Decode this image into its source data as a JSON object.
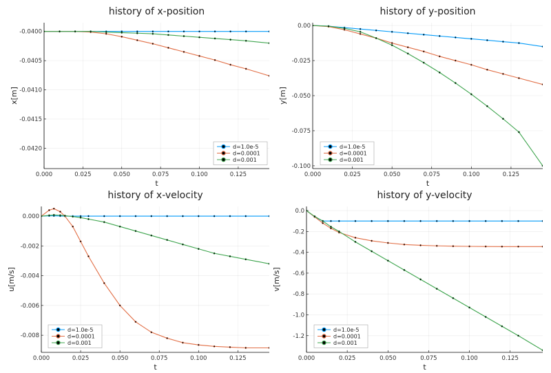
{
  "chart_data": [
    {
      "type": "line",
      "title": "history of x-position",
      "xlabel": "t",
      "ylabel": "x[m]",
      "xlim": [
        0,
        0.145
      ],
      "ylim": [
        -0.04235,
        -0.03985
      ],
      "xticks": [
        0,
        0.025,
        0.05,
        0.075,
        0.1,
        0.125
      ],
      "xtick_labels": [
        "0.000",
        "0.025",
        "0.050",
        "0.075",
        "0.100",
        "0.125"
      ],
      "yticks": [
        -0.04,
        -0.0405,
        -0.041,
        -0.0415,
        -0.042
      ],
      "ytick_labels": [
        "-0.0400",
        "-0.0405",
        "-0.0410",
        "-0.0415",
        "-0.0420"
      ],
      "grid": true,
      "legend_position": "bottom-right",
      "x": [
        0,
        0.01,
        0.02,
        0.03,
        0.04,
        0.05,
        0.06,
        0.07,
        0.08,
        0.09,
        0.1,
        0.11,
        0.12,
        0.13,
        0.145
      ],
      "series": [
        {
          "name": "d=1.0e-5",
          "color": "#009af9",
          "values": [
            -0.04,
            -0.04,
            -0.04,
            -0.04,
            -0.04,
            -0.04,
            -0.04,
            -0.04,
            -0.04,
            -0.04,
            -0.04,
            -0.04,
            -0.04,
            -0.04,
            -0.04
          ]
        },
        {
          "name": "d=0.0001",
          "color": "#e26f46",
          "values": [
            -0.04,
            -0.04,
            -0.04,
            -0.04001,
            -0.04004,
            -0.04009,
            -0.04015,
            -0.04021,
            -0.04028,
            -0.04035,
            -0.04042,
            -0.04049,
            -0.04057,
            -0.04064,
            -0.04076
          ]
        },
        {
          "name": "d=0.001",
          "color": "#3da44d",
          "values": [
            -0.04,
            -0.04,
            -0.04,
            -0.04,
            -0.04001,
            -0.04002,
            -0.04003,
            -0.04004,
            -0.04006,
            -0.04008,
            -0.0401,
            -0.04012,
            -0.04014,
            -0.04016,
            -0.0402
          ]
        }
      ]
    },
    {
      "type": "line",
      "title": "history of y-position",
      "xlabel": "t",
      "ylabel": "y[m]",
      "xlim": [
        0,
        0.145
      ],
      "ylim": [
        -0.102,
        0.002
      ],
      "xticks": [
        0,
        0.025,
        0.05,
        0.075,
        0.1,
        0.125
      ],
      "xtick_labels": [
        "0.000",
        "0.025",
        "0.050",
        "0.075",
        "0.100",
        "0.125"
      ],
      "yticks": [
        0,
        -0.025,
        -0.05,
        -0.075,
        -0.1
      ],
      "ytick_labels": [
        "0.00",
        "-0.025",
        "-0.050",
        "-0.075",
        "-0.100"
      ],
      "grid": true,
      "legend_position": "bottom-left",
      "x": [
        0,
        0.01,
        0.02,
        0.03,
        0.04,
        0.05,
        0.06,
        0.07,
        0.08,
        0.09,
        0.1,
        0.11,
        0.12,
        0.13,
        0.145
      ],
      "series": [
        {
          "name": "d=1.0e-5",
          "color": "#009af9",
          "values": [
            0,
            -0.0005,
            -0.0015,
            -0.0025,
            -0.0035,
            -0.0045,
            -0.0055,
            -0.0065,
            -0.0075,
            -0.0085,
            -0.0095,
            -0.0105,
            -0.0115,
            -0.0125,
            -0.015
          ]
        },
        {
          "name": "d=0.0001",
          "color": "#e26f46",
          "values": [
            0,
            -0.0008,
            -0.003,
            -0.006,
            -0.009,
            -0.0125,
            -0.0155,
            -0.0185,
            -0.022,
            -0.025,
            -0.028,
            -0.0315,
            -0.0345,
            -0.0375,
            -0.042
          ]
        },
        {
          "name": "d=0.001",
          "color": "#3da44d",
          "values": [
            0,
            -0.0005,
            -0.002,
            -0.0045,
            -0.009,
            -0.014,
            -0.02,
            -0.0265,
            -0.0335,
            -0.041,
            -0.049,
            -0.0575,
            -0.0665,
            -0.076,
            -0.1
          ]
        }
      ]
    },
    {
      "type": "line",
      "title": "history of x-velocity",
      "xlabel": "t",
      "ylabel": "u[m/s]",
      "xlim": [
        0,
        0.145
      ],
      "ylim": [
        -0.00915,
        0.00065
      ],
      "xticks": [
        0,
        0.025,
        0.05,
        0.075,
        0.1,
        0.125
      ],
      "xtick_labels": [
        "0.000",
        "0.025",
        "0.050",
        "0.075",
        "0.100",
        "0.125"
      ],
      "yticks": [
        0,
        -0.002,
        -0.004,
        -0.006,
        -0.008
      ],
      "ytick_labels": [
        "0.000",
        "-0.002",
        "-0.004",
        "-0.006",
        "-0.008"
      ],
      "grid": true,
      "legend_position": "bottom-left",
      "x": [
        0,
        0.005,
        0.008,
        0.012,
        0.015,
        0.02,
        0.025,
        0.03,
        0.04,
        0.05,
        0.06,
        0.07,
        0.08,
        0.09,
        0.1,
        0.11,
        0.12,
        0.13,
        0.145
      ],
      "series": [
        {
          "name": "d=1.0e-5",
          "color": "#009af9",
          "values": [
            0,
            2e-05,
            2e-05,
            1e-05,
            0,
            0,
            0,
            0,
            0,
            0,
            0,
            0,
            0,
            0,
            0,
            0,
            0,
            0,
            0
          ]
        },
        {
          "name": "d=0.0001",
          "color": "#e26f46",
          "values": [
            0,
            0.0004,
            0.0005,
            0.0003,
            0,
            -0.0007,
            -0.0017,
            -0.0027,
            -0.0045,
            -0.006,
            -0.0071,
            -0.0078,
            -0.0082,
            -0.0085,
            -0.00865,
            -0.00875,
            -0.0088,
            -0.00885,
            -0.00885
          ]
        },
        {
          "name": "d=0.001",
          "color": "#3da44d",
          "values": [
            0,
            5e-05,
            8e-05,
            6e-05,
            3e-05,
            -3e-05,
            -0.0001,
            -0.0002,
            -0.0004,
            -0.0007,
            -0.001,
            -0.0013,
            -0.0016,
            -0.0019,
            -0.0022,
            -0.0025,
            -0.0027,
            -0.0029,
            -0.0032
          ]
        }
      ]
    },
    {
      "type": "line",
      "title": "history of y-velocity",
      "xlabel": "t",
      "ylabel": "v[m/s]",
      "xlim": [
        0,
        0.145
      ],
      "ylim": [
        -1.36,
        0.04
      ],
      "xticks": [
        0,
        0.025,
        0.05,
        0.075,
        0.1,
        0.125
      ],
      "xtick_labels": [
        "0.000",
        "0.025",
        "0.050",
        "0.075",
        "0.100",
        "0.125"
      ],
      "yticks": [
        0,
        -0.2,
        -0.4,
        -0.6,
        -0.8,
        -1.0,
        -1.2
      ],
      "ytick_labels": [
        "0.0",
        "-0.2",
        "-0.4",
        "-0.6",
        "-0.8",
        "-1.0",
        "-1.2"
      ],
      "grid": true,
      "legend_position": "bottom-left",
      "x": [
        0,
        0.005,
        0.01,
        0.015,
        0.02,
        0.03,
        0.04,
        0.05,
        0.06,
        0.07,
        0.08,
        0.09,
        0.1,
        0.11,
        0.12,
        0.13,
        0.145
      ],
      "series": [
        {
          "name": "d=1.0e-5",
          "color": "#009af9",
          "values": [
            0,
            -0.06,
            -0.1,
            -0.1,
            -0.1,
            -0.1,
            -0.1,
            -0.1,
            -0.1,
            -0.1,
            -0.1,
            -0.1,
            -0.1,
            -0.1,
            -0.1,
            -0.1,
            -0.1
          ]
        },
        {
          "name": "d=0.0001",
          "color": "#e26f46",
          "values": [
            0,
            -0.06,
            -0.12,
            -0.17,
            -0.21,
            -0.26,
            -0.29,
            -0.31,
            -0.325,
            -0.333,
            -0.338,
            -0.341,
            -0.343,
            -0.344,
            -0.345,
            -0.345,
            -0.345
          ]
        },
        {
          "name": "d=0.001",
          "color": "#3da44d",
          "values": [
            0,
            -0.055,
            -0.1,
            -0.155,
            -0.2,
            -0.3,
            -0.39,
            -0.48,
            -0.57,
            -0.66,
            -0.75,
            -0.84,
            -0.93,
            -1.02,
            -1.11,
            -1.2,
            -1.34
          ]
        }
      ]
    }
  ]
}
